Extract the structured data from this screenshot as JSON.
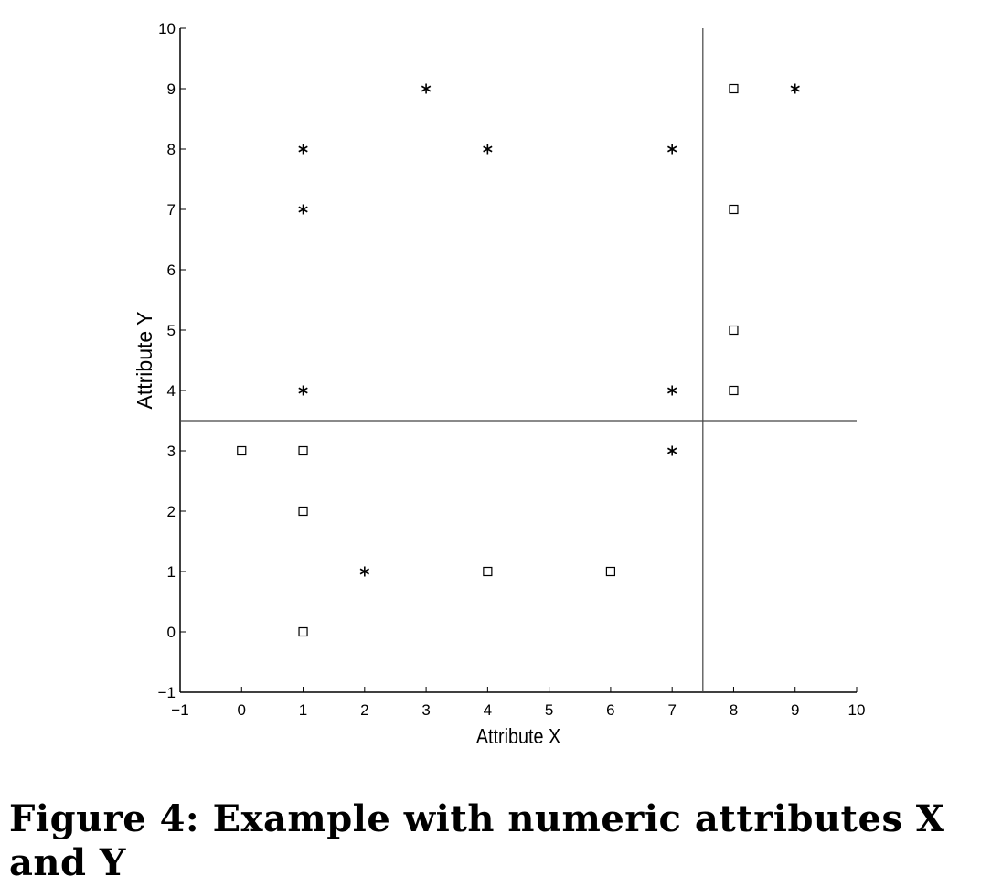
{
  "chart_data": {
    "type": "scatter",
    "title": "",
    "xlabel": "Attribute X",
    "ylabel": "Attribute Y",
    "xlim": [
      -1,
      10
    ],
    "ylim": [
      -1,
      10
    ],
    "xticks": [
      -1,
      0,
      1,
      2,
      3,
      4,
      5,
      6,
      7,
      8,
      9,
      10
    ],
    "yticks": [
      -1,
      0,
      1,
      2,
      3,
      4,
      5,
      6,
      7,
      8,
      9,
      10
    ],
    "grid": false,
    "legend": false,
    "series": [
      {
        "marker": "asterisk",
        "points": [
          [
            1,
            8
          ],
          [
            1,
            7
          ],
          [
            1,
            4
          ],
          [
            2,
            1
          ],
          [
            3,
            9
          ],
          [
            4,
            8
          ],
          [
            7,
            8
          ],
          [
            7,
            4
          ],
          [
            7,
            3
          ],
          [
            9,
            9
          ]
        ]
      },
      {
        "marker": "square",
        "points": [
          [
            0,
            3
          ],
          [
            1,
            3
          ],
          [
            1,
            2
          ],
          [
            1,
            0
          ],
          [
            4,
            1
          ],
          [
            6,
            1
          ],
          [
            8,
            9
          ],
          [
            8,
            7
          ],
          [
            8,
            5
          ],
          [
            8,
            4
          ]
        ]
      }
    ],
    "split_lines": {
      "vertical_x": 7.5,
      "horizontal_y": 3.5
    }
  },
  "caption": {
    "text": "Figure 4:  Example with numeric attributes X and Y"
  }
}
